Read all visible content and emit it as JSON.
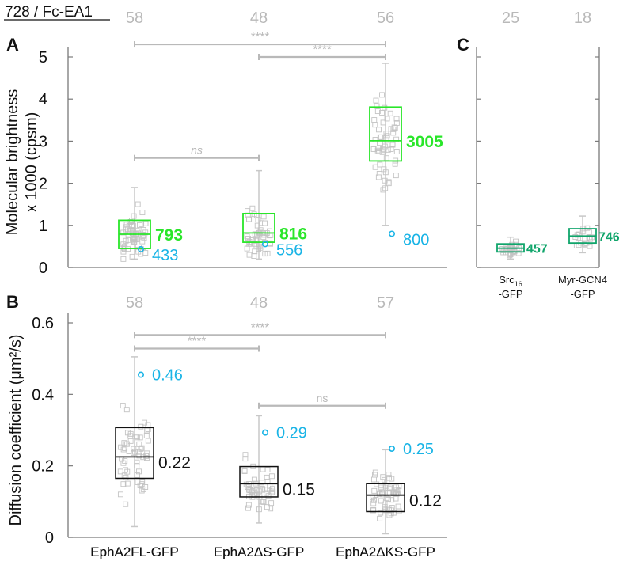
{
  "header": "728 / Fc-EA1",
  "colors": {
    "axis": "#7a7a7a",
    "grey": "#b9b9b9",
    "green": "#29e629",
    "blue": "#19b4e6",
    "teal": "#10a56b",
    "black": "#111111"
  },
  "chart_data": [
    {
      "panel": "A",
      "type": "box",
      "ylabel": "Molecular brightness\nx 1000 (cpsm)",
      "ylim": [
        0,
        5
      ],
      "yticks": [
        "0",
        "1",
        "2",
        "3",
        "4",
        "5"
      ],
      "categories": [
        "EphA2FL-GFP",
        "EphA2ΔS-GFP",
        "EphA2ΔKS-GFP"
      ],
      "n": [
        "58",
        "48",
        "56"
      ],
      "boxes": [
        {
          "q1": 0.45,
          "median": 0.79,
          "q3": 1.12,
          "min": 0.2,
          "max": 1.9,
          "label": "793",
          "outlier": 0.433,
          "outlier_label": "433"
        },
        {
          "q1": 0.6,
          "median": 0.82,
          "q3": 1.28,
          "min": 0.2,
          "max": 2.3,
          "label": "816",
          "outlier": 0.556,
          "outlier_label": "556"
        },
        {
          "q1": 2.53,
          "median": 3.01,
          "q3": 3.81,
          "min": 1.0,
          "max": 4.85,
          "label": "3005",
          "outlier": 0.8,
          "outlier_label": "800"
        }
      ],
      "comparisons": [
        {
          "from": 0,
          "to": 2,
          "label": "****",
          "y": 5.3
        },
        {
          "from": 1,
          "to": 2,
          "label": "****",
          "y": 5.0
        },
        {
          "from": 0,
          "to": 1,
          "label": "ns",
          "y": 2.6
        }
      ]
    },
    {
      "panel": "B",
      "type": "box",
      "ylabel": "Diffusion coefficient (μm²/s)",
      "ylim": [
        0,
        0.6
      ],
      "yticks": [
        "0",
        "0.2",
        "0.4",
        "0.6"
      ],
      "categories": [
        "EphA2FL-GFP",
        "EphA2ΔS-GFP",
        "EphA2ΔKS-GFP"
      ],
      "n": [
        "58",
        "48",
        "57"
      ],
      "boxes": [
        {
          "q1": 0.165,
          "median": 0.225,
          "q3": 0.307,
          "min": 0.03,
          "max": 0.505,
          "label": "0.22",
          "outlier": 0.455,
          "outlier_label": "0.46"
        },
        {
          "q1": 0.113,
          "median": 0.15,
          "q3": 0.198,
          "min": 0.04,
          "max": 0.34,
          "label": "0.15",
          "outlier": 0.293,
          "outlier_label": "0.29"
        },
        {
          "q1": 0.072,
          "median": 0.118,
          "q3": 0.15,
          "min": 0.01,
          "max": 0.245,
          "label": "0.12",
          "outlier": 0.248,
          "outlier_label": "0.25"
        }
      ],
      "comparisons": [
        {
          "from": 0,
          "to": 2,
          "label": "****",
          "y": 0.566
        },
        {
          "from": 0,
          "to": 1,
          "label": "****",
          "y": 0.528
        },
        {
          "from": 1,
          "to": 2,
          "label": "ns",
          "y": 0.368
        }
      ]
    },
    {
      "panel": "C",
      "type": "box",
      "ylim": [
        0,
        5
      ],
      "categories": [
        {
          "main": "Src",
          "sub": "16",
          "line2": "-GFP"
        },
        {
          "main": "Myr-GCN4",
          "sub": "",
          "line2": "-GFP"
        }
      ],
      "n": [
        "25",
        "18"
      ],
      "boxes": [
        {
          "q1": 0.37,
          "median": 0.457,
          "q3": 0.56,
          "min": 0.2,
          "max": 0.72,
          "label": "457"
        },
        {
          "q1": 0.58,
          "median": 0.746,
          "q3": 0.92,
          "min": 0.35,
          "max": 1.22,
          "label": "746"
        }
      ]
    }
  ]
}
